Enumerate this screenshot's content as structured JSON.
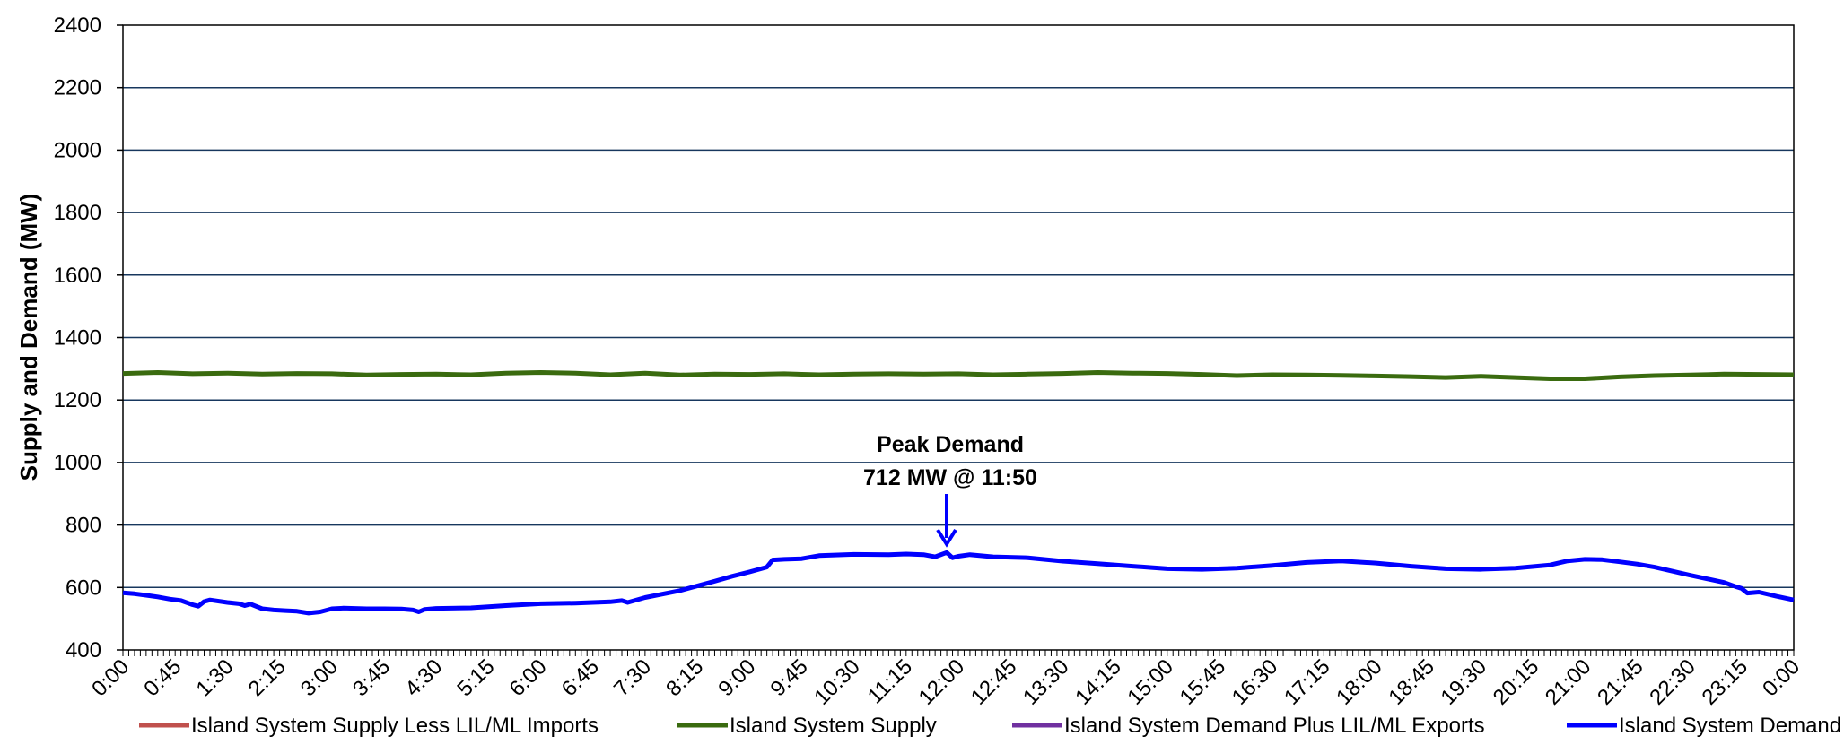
{
  "chart_data": {
    "type": "line",
    "ylabel": "Supply and Demand (MW)",
    "ylim": [
      400,
      2400
    ],
    "yticks": [
      400,
      600,
      800,
      1000,
      1200,
      1400,
      1600,
      1800,
      2000,
      2200,
      2400
    ],
    "xlim_hours": [
      0,
      24
    ],
    "xtick_labels": [
      "0:00",
      "0:45",
      "1:30",
      "2:15",
      "3:00",
      "3:45",
      "4:30",
      "5:15",
      "6:00",
      "6:45",
      "7:30",
      "8:15",
      "9:00",
      "9:45",
      "10:30",
      "11:15",
      "12:00",
      "12:45",
      "13:30",
      "14:15",
      "15:00",
      "15:45",
      "16:30",
      "17:15",
      "18:00",
      "18:45",
      "19:30",
      "20:15",
      "21:00",
      "21:45",
      "22:30",
      "23:15",
      "0:00"
    ],
    "grid": "horizontal",
    "legend_position": "bottom",
    "annotation": {
      "line1": "Peak Demand",
      "line2": "712 MW @ 11:50",
      "x": "11:50",
      "y": 712
    },
    "series": [
      {
        "name": "Island System Supply Less LIL/ML Imports",
        "color": "#c0504d",
        "x": [],
        "values": []
      },
      {
        "name": "Island System Supply",
        "color": "#3a6b0f",
        "x": [
          "0:00",
          "0:30",
          "1:00",
          "1:30",
          "2:00",
          "2:30",
          "3:00",
          "3:30",
          "4:00",
          "4:30",
          "5:00",
          "5:30",
          "6:00",
          "6:30",
          "7:00",
          "7:30",
          "8:00",
          "8:30",
          "9:00",
          "9:30",
          "10:00",
          "10:30",
          "11:00",
          "11:30",
          "12:00",
          "12:30",
          "13:00",
          "13:30",
          "14:00",
          "14:30",
          "15:00",
          "15:30",
          "16:00",
          "16:30",
          "17:00",
          "17:30",
          "18:00",
          "18:30",
          "19:00",
          "19:30",
          "20:00",
          "20:30",
          "21:00",
          "21:30",
          "22:00",
          "22:30",
          "23:00",
          "23:30",
          "24:00"
        ],
        "values": [
          1285,
          1288,
          1284,
          1286,
          1283,
          1285,
          1284,
          1280,
          1282,
          1283,
          1281,
          1286,
          1288,
          1286,
          1281,
          1286,
          1280,
          1283,
          1282,
          1284,
          1281,
          1283,
          1284,
          1283,
          1284,
          1281,
          1283,
          1285,
          1288,
          1286,
          1285,
          1282,
          1278,
          1281,
          1280,
          1279,
          1277,
          1275,
          1272,
          1276,
          1272,
          1268,
          1268,
          1274,
          1278,
          1280,
          1283,
          1282,
          1281
        ]
      },
      {
        "name": "Island System Demand Plus LIL/ML Exports",
        "color": "#7030a0",
        "x": [],
        "values": []
      },
      {
        "name": "Island System Demand",
        "color": "#0000ff",
        "x": [
          "0:00",
          "0:10",
          "0:20",
          "0:30",
          "0:40",
          "0:50",
          "1:00",
          "1:05",
          "1:10",
          "1:15",
          "1:30",
          "1:40",
          "1:45",
          "1:50",
          "2:00",
          "2:10",
          "2:20",
          "2:30",
          "2:40",
          "2:50",
          "3:00",
          "3:10",
          "3:20",
          "3:30",
          "3:45",
          "4:00",
          "4:10",
          "4:15",
          "4:20",
          "4:30",
          "5:00",
          "5:30",
          "6:00",
          "6:30",
          "7:00",
          "7:10",
          "7:15",
          "7:30",
          "8:00",
          "8:15",
          "8:30",
          "8:45",
          "9:00",
          "9:15",
          "9:20",
          "9:30",
          "9:45",
          "10:00",
          "10:30",
          "11:00",
          "11:15",
          "11:30",
          "11:40",
          "11:50",
          "11:55",
          "12:00",
          "12:10",
          "12:30",
          "13:00",
          "13:30",
          "14:00",
          "14:30",
          "15:00",
          "15:30",
          "16:00",
          "16:30",
          "17:00",
          "17:30",
          "18:00",
          "18:30",
          "19:00",
          "19:30",
          "20:00",
          "20:30",
          "20:45",
          "21:00",
          "21:15",
          "21:30",
          "21:45",
          "22:00",
          "22:30",
          "23:00",
          "23:10",
          "23:15",
          "23:20",
          "23:30",
          "23:45",
          "24:00"
        ],
        "values": [
          583,
          580,
          575,
          570,
          563,
          558,
          545,
          540,
          555,
          560,
          552,
          548,
          542,
          547,
          532,
          528,
          526,
          524,
          518,
          522,
          532,
          534,
          533,
          532,
          532,
          531,
          528,
          522,
          530,
          533,
          535,
          542,
          548,
          550,
          554,
          558,
          552,
          568,
          590,
          605,
          620,
          636,
          650,
          665,
          688,
          690,
          692,
          702,
          706,
          705,
          707,
          705,
          698,
          712,
          695,
          700,
          705,
          698,
          695,
          684,
          676,
          668,
          660,
          658,
          662,
          670,
          680,
          685,
          678,
          668,
          660,
          658,
          662,
          672,
          685,
          690,
          689,
          682,
          675,
          665,
          640,
          616,
          603,
          597,
          582,
          585,
          572,
          560
        ]
      }
    ]
  }
}
